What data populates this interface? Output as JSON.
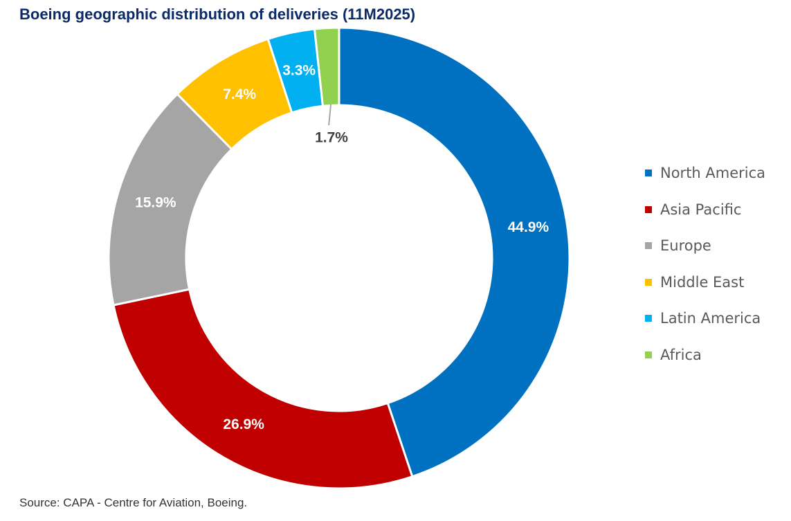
{
  "chart_data": {
    "type": "pie",
    "variant": "donut",
    "title": "Boeing geographic distribution of deliveries (11M2025)",
    "categories": [
      "North America",
      "Asia Pacific",
      "Europe",
      "Middle East",
      "Latin America",
      "Africa"
    ],
    "values": [
      44.9,
      26.9,
      15.9,
      7.4,
      3.3,
      1.7
    ],
    "data_labels": [
      "44.9%",
      "26.9%",
      "15.9%",
      "7.4%",
      "3.3%",
      "1.7%"
    ],
    "colors": [
      "#0070c0",
      "#c00000",
      "#a5a5a5",
      "#ffc000",
      "#00b0f0",
      "#92d050"
    ],
    "legend_position": "right",
    "source": "Source: CAPA - Centre for Aviation, Boeing."
  }
}
